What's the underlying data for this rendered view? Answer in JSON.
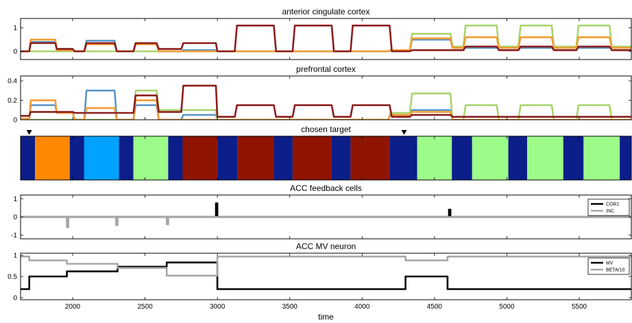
{
  "chart_data": [
    {
      "type": "line",
      "title": "anterior cingulate cortex",
      "xlim": [
        1640,
        5860
      ],
      "ylim": [
        -0.35,
        1.4
      ],
      "yticks": [
        0,
        1
      ],
      "series": [
        {
          "color": "#5a94c8",
          "x": [
            1640,
            1700,
            1710,
            1880,
            1890,
            2000,
            2015,
            2080,
            2095,
            2290,
            2305,
            2420,
            2435,
            2580,
            2595,
            2750,
            2765,
            2990,
            3000,
            4180,
            4195,
            4330,
            4345,
            4610,
            4625,
            5860
          ],
          "y": [
            0,
            0,
            0.4,
            0.4,
            0.1,
            0.1,
            0,
            0,
            0.45,
            0.45,
            0,
            0,
            0.35,
            0.35,
            0,
            0,
            0.05,
            0.05,
            0,
            0,
            0.05,
            0.05,
            0.5,
            0.5,
            0.15,
            0.15
          ]
        },
        {
          "color": "#a9d46d",
          "x": [
            1640,
            3000,
            4190,
            4205,
            4330,
            4345,
            4610,
            4625,
            4700,
            4715,
            4930,
            4945,
            5080,
            5095,
            5310,
            5325,
            5480,
            5495,
            5710,
            5725,
            5860
          ],
          "y": [
            0,
            0,
            0,
            0.05,
            0.05,
            0.75,
            0.75,
            0.2,
            0.2,
            1.1,
            1.1,
            0.2,
            0.2,
            1.1,
            1.1,
            0.2,
            0.2,
            1.1,
            1.1,
            0.2,
            0.2
          ]
        },
        {
          "color": "#f39c34",
          "x": [
            1640,
            1700,
            1710,
            1880,
            1890,
            2000,
            2015,
            2080,
            2095,
            2290,
            2305,
            2420,
            2435,
            2580,
            2595,
            2990,
            3000,
            4180,
            4195,
            4330,
            4345,
            4610,
            4625,
            4700,
            4715,
            4930,
            4945,
            5080,
            5095,
            5310,
            5325,
            5480,
            5495,
            5710,
            5725,
            5860
          ],
          "y": [
            0,
            0,
            0.5,
            0.5,
            0.05,
            0.05,
            0,
            0,
            0.3,
            0.3,
            0,
            0,
            0.3,
            0.3,
            0,
            0,
            0,
            0,
            0.05,
            0.05,
            0.55,
            0.55,
            0.15,
            0.15,
            0.6,
            0.6,
            0.15,
            0.15,
            0.6,
            0.6,
            0.15,
            0.15,
            0.6,
            0.6,
            0.15,
            0.15
          ]
        },
        {
          "color": "#8c1c1c",
          "x": [
            1640,
            1700,
            1710,
            1880,
            1890,
            2000,
            2015,
            2080,
            2095,
            2290,
            2305,
            2420,
            2435,
            2580,
            2595,
            2750,
            2765,
            2990,
            3000,
            3120,
            3135,
            3390,
            3405,
            3520,
            3535,
            3790,
            3805,
            3920,
            3935,
            4190,
            4205,
            4330,
            4345,
            4610,
            4625,
            4700,
            4715,
            4930,
            4945,
            5080,
            5095,
            5310,
            5325,
            5480,
            5495,
            5710,
            5725,
            5860
          ],
          "y": [
            0,
            0,
            0.35,
            0.35,
            0.1,
            0.1,
            0,
            0,
            0.35,
            0.35,
            0,
            0,
            0.35,
            0.35,
            0.1,
            0.1,
            0.35,
            0.35,
            0,
            0,
            1.1,
            1.1,
            0,
            0,
            1.1,
            1.1,
            0,
            0,
            1.1,
            1.1,
            0,
            0,
            0.05,
            0.05,
            0.05,
            0.05,
            0.2,
            0.2,
            0.05,
            0.05,
            0.2,
            0.2,
            0.05,
            0.05,
            0.2,
            0.2,
            0.05,
            0.05
          ]
        }
      ]
    },
    {
      "type": "line",
      "title": "prefrontal cortex",
      "xlim": [
        1640,
        5860
      ],
      "ylim": [
        0,
        0.45
      ],
      "yticks": [
        0,
        0.2,
        0.4
      ],
      "series": [
        {
          "color": "#5a94c8",
          "x": [
            1640,
            1700,
            1710,
            1880,
            1890,
            2000,
            2015,
            2080,
            2095,
            2290,
            2305,
            2420,
            2435,
            2580,
            2595,
            2750,
            2765,
            2990,
            3000,
            4180,
            4195,
            4330,
            4345,
            4610,
            4625,
            5860
          ],
          "y": [
            0.01,
            0.01,
            0.15,
            0.15,
            0.07,
            0.07,
            0,
            0,
            0.3,
            0.3,
            0,
            0,
            0.15,
            0.15,
            0,
            0,
            0.05,
            0.05,
            0,
            0,
            0.05,
            0.05,
            0.1,
            0.1,
            0,
            0
          ]
        },
        {
          "color": "#a9d46d",
          "x": [
            1640,
            2420,
            2435,
            2580,
            2595,
            2750,
            2765,
            2990,
            3000,
            4180,
            4195,
            4330,
            4345,
            4610,
            4625,
            4700,
            4715,
            4930,
            4945,
            5080,
            5095,
            5310,
            5325,
            5480,
            5495,
            5710,
            5725,
            5860
          ],
          "y": [
            0,
            0,
            0.3,
            0.3,
            0.1,
            0.1,
            0.1,
            0.1,
            0,
            0,
            0.07,
            0.07,
            0.27,
            0.27,
            0,
            0,
            0.15,
            0.15,
            0,
            0,
            0.15,
            0.15,
            0,
            0,
            0.15,
            0.15,
            0,
            0
          ]
        },
        {
          "color": "#f39c34",
          "x": [
            1640,
            1700,
            1710,
            1880,
            1890,
            2000,
            2015,
            2080,
            2095,
            2290,
            2305,
            2420,
            2435,
            2580,
            2595,
            2750,
            2765,
            2990,
            3000,
            4180,
            4195,
            4330,
            4345,
            4610,
            4625,
            5860
          ],
          "y": [
            0.01,
            0.01,
            0.2,
            0.2,
            0.07,
            0.07,
            0,
            0,
            0.12,
            0.12,
            0,
            0,
            0.2,
            0.2,
            0,
            0,
            0,
            0,
            0,
            0,
            0.05,
            0.05,
            0.08,
            0.08,
            0,
            0
          ]
        },
        {
          "color": "#8c1c1c",
          "x": [
            1640,
            1700,
            1710,
            1880,
            1890,
            2000,
            2015,
            2080,
            2095,
            2290,
            2305,
            2420,
            2435,
            2580,
            2595,
            2750,
            2765,
            2990,
            3000,
            3120,
            3135,
            3390,
            3405,
            3520,
            3535,
            3790,
            3805,
            3920,
            3935,
            4190,
            4205,
            4330,
            4345,
            4610,
            4625,
            5860
          ],
          "y": [
            0.04,
            0.04,
            0.08,
            0.08,
            0.08,
            0.08,
            0.07,
            0.07,
            0.07,
            0.07,
            0.07,
            0.07,
            0.25,
            0.25,
            0.08,
            0.08,
            0.35,
            0.35,
            0.03,
            0.03,
            0.15,
            0.15,
            0.03,
            0.03,
            0.15,
            0.15,
            0.03,
            0.03,
            0.15,
            0.15,
            0.03,
            0.03,
            0.05,
            0.05,
            0.03,
            0.03
          ]
        }
      ]
    },
    {
      "type": "heatmap",
      "title": "chosen target",
      "xlim": [
        1640,
        5860
      ],
      "markers": [
        1700,
        4290
      ],
      "segments": [
        {
          "start": 1640,
          "end": 1740,
          "color": "#0b1e8a"
        },
        {
          "start": 1740,
          "end": 1980,
          "color": "#ff8800"
        },
        {
          "start": 1980,
          "end": 2080,
          "color": "#0b1e8a"
        },
        {
          "start": 2080,
          "end": 2320,
          "color": "#00a3ff"
        },
        {
          "start": 2320,
          "end": 2420,
          "color": "#0b1e8a"
        },
        {
          "start": 2420,
          "end": 2660,
          "color": "#9dfb8a"
        },
        {
          "start": 2660,
          "end": 2760,
          "color": "#0b1e8a"
        },
        {
          "start": 2760,
          "end": 3000,
          "color": "#8f1402"
        },
        {
          "start": 3000,
          "end": 3140,
          "color": "#0b1e8a"
        },
        {
          "start": 3140,
          "end": 3390,
          "color": "#8f1402"
        },
        {
          "start": 3390,
          "end": 3520,
          "color": "#0b1e8a"
        },
        {
          "start": 3520,
          "end": 3790,
          "color": "#8f1402"
        },
        {
          "start": 3790,
          "end": 3920,
          "color": "#0b1e8a"
        },
        {
          "start": 3920,
          "end": 4190,
          "color": "#8f1402"
        },
        {
          "start": 4190,
          "end": 4380,
          "color": "#0b1e8a"
        },
        {
          "start": 4380,
          "end": 4620,
          "color": "#9dfb8a"
        },
        {
          "start": 4620,
          "end": 4760,
          "color": "#0b1e8a"
        },
        {
          "start": 4760,
          "end": 5010,
          "color": "#9dfb8a"
        },
        {
          "start": 5010,
          "end": 5140,
          "color": "#0b1e8a"
        },
        {
          "start": 5140,
          "end": 5390,
          "color": "#9dfb8a"
        },
        {
          "start": 5390,
          "end": 5530,
          "color": "#0b1e8a"
        },
        {
          "start": 5530,
          "end": 5780,
          "color": "#9dfb8a"
        },
        {
          "start": 5780,
          "end": 5860,
          "color": "#0b1e8a"
        }
      ]
    },
    {
      "type": "line",
      "title": "ACC feedback cells",
      "xlim": [
        1640,
        5860
      ],
      "ylim": [
        -1.2,
        1.2
      ],
      "yticks": [
        -1,
        0,
        1
      ],
      "legend": "right",
      "series": [
        {
          "name": "COR1",
          "color": "#000000",
          "x": [
            1640,
            2990,
            2990,
            3000,
            3000,
            4600,
            4600,
            4610,
            4610,
            5860
          ],
          "y": [
            0,
            0,
            0.75,
            0.75,
            0,
            0,
            0.4,
            0.4,
            0,
            0
          ]
        },
        {
          "name": "INC",
          "color": "#a6a6a6",
          "x": [
            1640,
            1960,
            1960,
            1970,
            1970,
            2300,
            2300,
            2310,
            2310,
            2650,
            2650,
            2660,
            2660,
            5860
          ],
          "y": [
            0,
            0,
            -0.55,
            -0.55,
            0,
            0,
            -0.45,
            -0.45,
            0,
            0,
            -0.4,
            -0.4,
            0,
            0
          ]
        }
      ]
    },
    {
      "type": "line",
      "title": "ACC MV neuron",
      "xlabel": "time",
      "xlim": [
        1640,
        5860
      ],
      "ylim": [
        -0.05,
        1.05
      ],
      "yticks": [
        0,
        0.5,
        1
      ],
      "xticks": [
        2000,
        2500,
        3000,
        3500,
        4000,
        4500,
        5000,
        5500
      ],
      "legend": "right",
      "series": [
        {
          "name": "MV",
          "color": "#000000",
          "x": [
            1640,
            1700,
            1700,
            1960,
            1960,
            2310,
            2310,
            2650,
            2650,
            3000,
            3000,
            4300,
            4300,
            4590,
            4590,
            5860
          ],
          "y": [
            0.2,
            0.2,
            0.5,
            0.5,
            0.62,
            0.62,
            0.73,
            0.73,
            0.83,
            0.83,
            0.2,
            0.2,
            0.5,
            0.5,
            0.2,
            0.2
          ]
        },
        {
          "name": "BETA/10",
          "color": "#a6a6a6",
          "x": [
            1640,
            1700,
            1700,
            1960,
            1960,
            2310,
            2310,
            2650,
            2650,
            3000,
            3000,
            4300,
            4300,
            4590,
            4590,
            5860
          ],
          "y": [
            0.97,
            0.97,
            0.88,
            0.88,
            0.8,
            0.8,
            0.7,
            0.7,
            0.52,
            0.52,
            0.97,
            0.97,
            0.88,
            0.88,
            0.97,
            0.97
          ]
        }
      ]
    }
  ]
}
